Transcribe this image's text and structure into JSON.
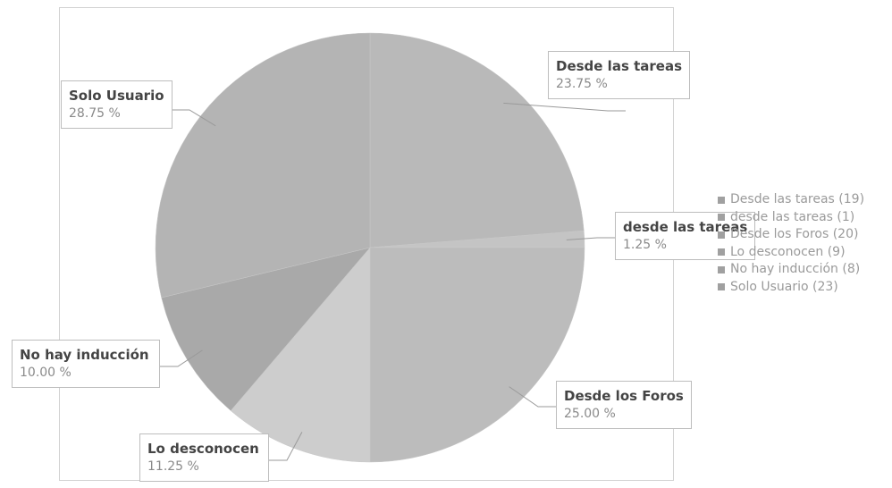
{
  "chart_data": {
    "type": "pie",
    "title": "",
    "slices": [
      {
        "label": "Desde las tareas",
        "value": 23.75,
        "percent_label": "23.75 %",
        "count": 19,
        "legend_label": "Desde las tareas (19)",
        "color": "#b9b9b9"
      },
      {
        "label": "desde las tareas",
        "value": 1.25,
        "percent_label": "1.25 %",
        "count": 1,
        "legend_label": "desde las tareas (1)",
        "color": "#c4c4c4"
      },
      {
        "label": "Desde los Foros",
        "value": 25.0,
        "percent_label": "25.00 %",
        "count": 20,
        "legend_label": "Desde los Foros (20)",
        "color": "#bcbcbc"
      },
      {
        "label": "Lo desconocen",
        "value": 11.25,
        "percent_label": "11.25 %",
        "count": 9,
        "legend_label": "Lo desconocen (9)",
        "color": "#cdcdcd"
      },
      {
        "label": "No hay inducción",
        "value": 10.0,
        "percent_label": "10.00 %",
        "count": 8,
        "legend_label": "No hay inducción (8)",
        "color": "#a9a9a9"
      },
      {
        "label": "Solo Usuario",
        "value": 28.75,
        "percent_label": "28.75 %",
        "count": 23,
        "legend_label": "Solo Usuario (23)",
        "color": "#b4b4b4"
      }
    ],
    "legend_position": "right",
    "data_labels": "callout boxes with category name and percentage"
  }
}
